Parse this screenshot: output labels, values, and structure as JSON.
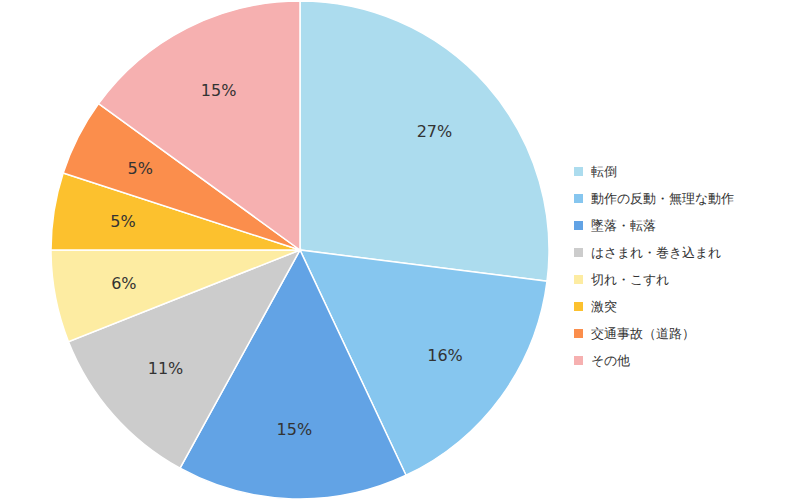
{
  "chart_data": {
    "type": "pie",
    "categories": [
      "転倒",
      "動作の反動・無理な動作",
      "墜落・転落",
      "はさまれ・巻き込まれ",
      "切れ・こすれ",
      "激突",
      "交通事故（道路）",
      "その他"
    ],
    "values": [
      27,
      16,
      15,
      11,
      6,
      5,
      5,
      15
    ],
    "value_labels": [
      "27%",
      "16%",
      "15%",
      "11%",
      "6%",
      "5%",
      "5%",
      "15%"
    ],
    "colors": [
      "#acdcee",
      "#86c6ef",
      "#62a3e5",
      "#cccccc",
      "#fdeca2",
      "#fcc12e",
      "#fb8e4c",
      "#f6b0b0"
    ],
    "data_labels": true,
    "legend": "right"
  }
}
